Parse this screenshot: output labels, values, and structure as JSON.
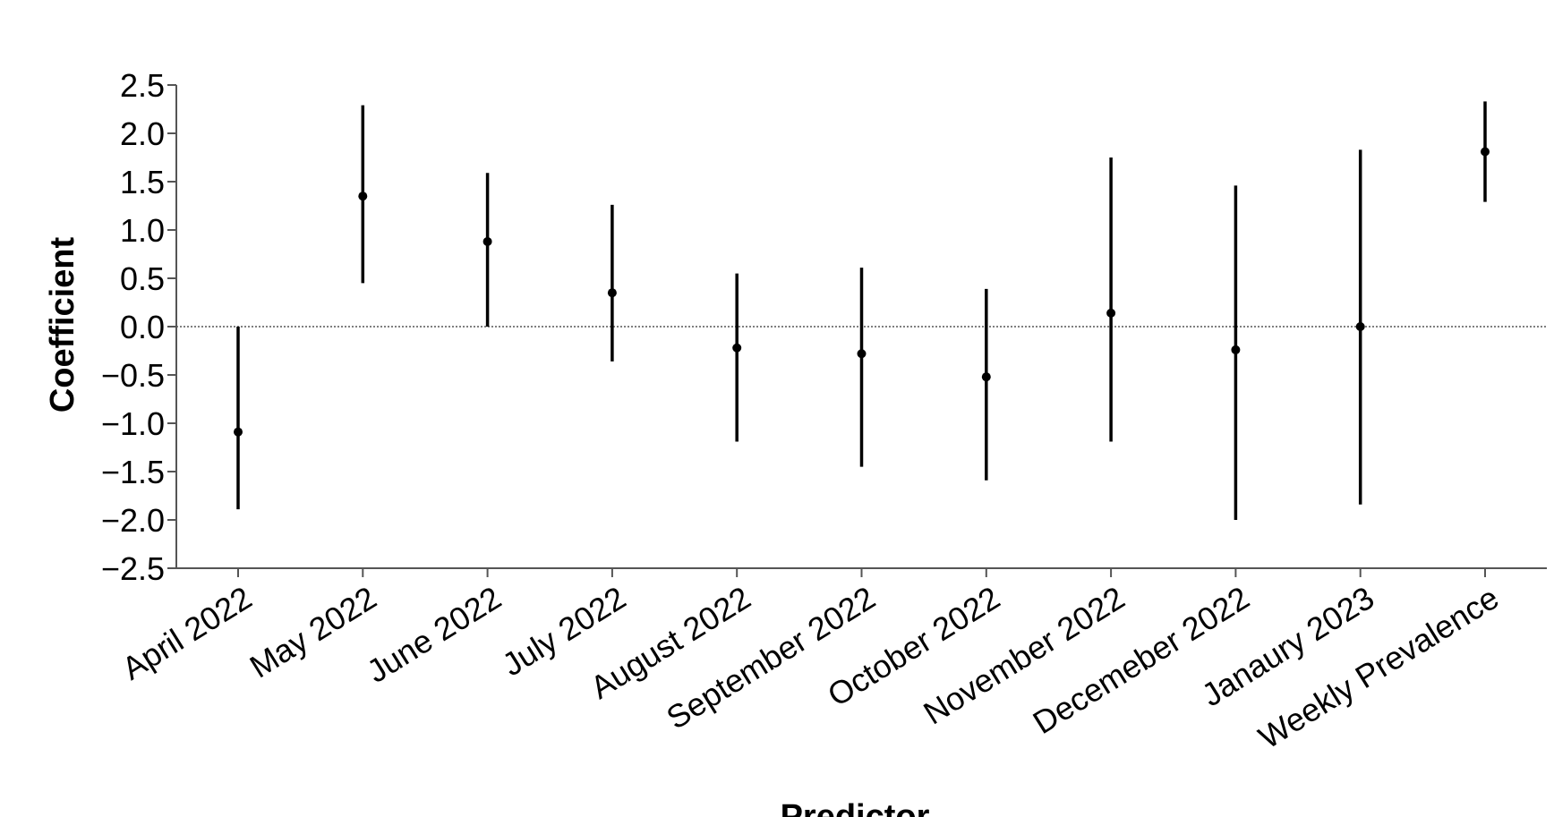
{
  "chart_data": {
    "type": "errorbar",
    "title": "",
    "xlabel": "Predictor",
    "ylabel": "Coefficient",
    "ylim": [
      -2.5,
      2.5
    ],
    "yticks": [
      2.5,
      2.0,
      1.5,
      1.0,
      0.5,
      0.0,
      -0.5,
      -1.0,
      -1.5,
      -2.0,
      -2.5
    ],
    "ytick_labels": [
      "2.5",
      "2.0",
      "1.5",
      "1.0",
      "0.5",
      "0.0",
      "−0.5",
      "−1.0",
      "−1.5",
      "−2.0",
      "−2.5"
    ],
    "reference_line": 0,
    "grid": false,
    "categories": [
      "April 2022",
      "May 2022",
      "June 2022",
      "July 2022",
      "August 2022",
      "September 2022",
      "October 2022",
      "November 2022",
      "Decemeber 2022",
      "Janaury 2023",
      "Weekly Prevalence"
    ],
    "estimates": [
      -1.09,
      1.35,
      0.88,
      0.35,
      -0.22,
      -0.28,
      -0.52,
      0.14,
      -0.24,
      0.0,
      1.81
    ],
    "lower": [
      -1.89,
      0.45,
      0.0,
      -0.36,
      -1.19,
      -1.45,
      -1.59,
      -1.19,
      -2.0,
      -1.84,
      1.29
    ],
    "upper": [
      0.0,
      2.29,
      1.59,
      1.26,
      0.55,
      0.61,
      0.39,
      1.75,
      1.46,
      1.83,
      2.33
    ]
  }
}
